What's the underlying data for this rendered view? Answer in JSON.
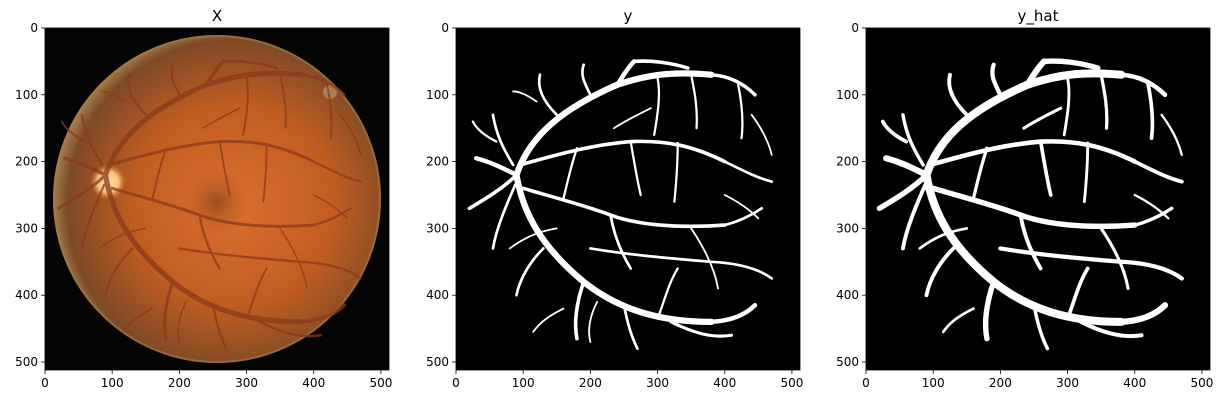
{
  "panels": [
    {
      "title": "X",
      "kind": "fundus"
    },
    {
      "title": "y",
      "kind": "mask"
    },
    {
      "title": "y_hat",
      "kind": "pred"
    }
  ],
  "axes": {
    "x_ticks": [
      "0",
      "100",
      "200",
      "300",
      "400",
      "500"
    ],
    "y_ticks": [
      "0",
      "100",
      "200",
      "300",
      "400",
      "500"
    ],
    "x_tick_values": [
      0,
      100,
      200,
      300,
      400,
      500
    ],
    "y_tick_values": [
      0,
      100,
      200,
      300,
      400,
      500
    ],
    "range": [
      0,
      512
    ]
  },
  "colors": {
    "fundus_center": "#d8702e",
    "fundus_mid": "#c25d22",
    "fundus_edge": "#7e4a26",
    "fundus_rim": "#a47c4e",
    "optic_disc": "#f7c07a",
    "fovea": "#7a3a18",
    "vessel_fundus": "#8c3a1c",
    "background": "#000000",
    "vessel_mask": "#ffffff"
  }
}
